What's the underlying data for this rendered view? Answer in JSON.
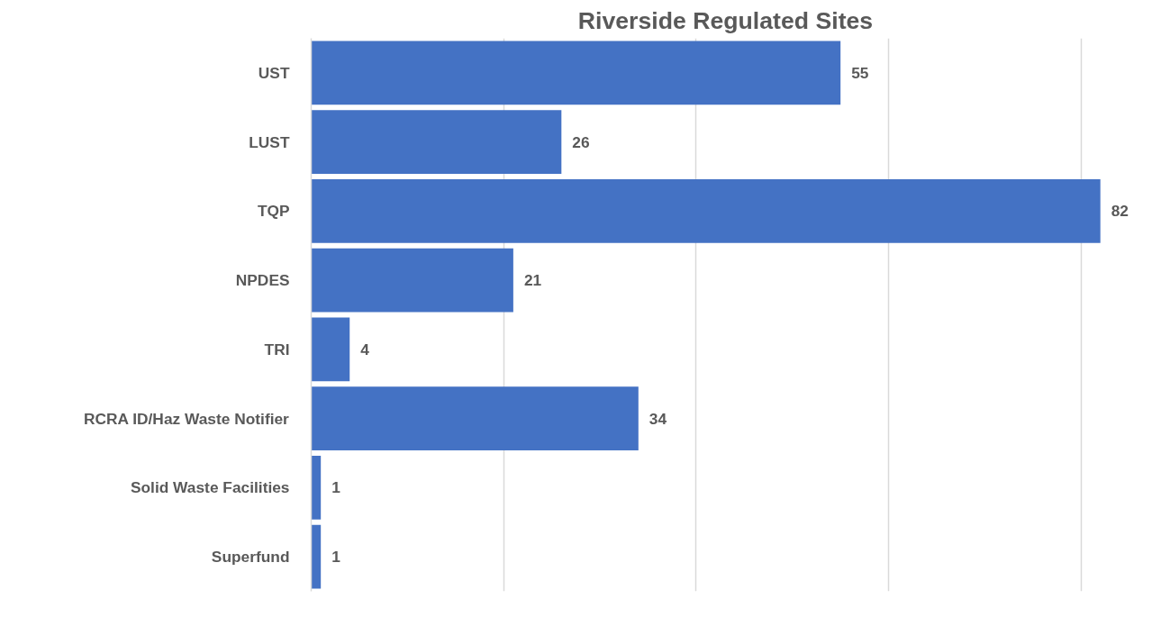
{
  "chart_data": {
    "type": "bar",
    "orientation": "horizontal",
    "title": "Riverside Regulated Sites",
    "categories": [
      "UST",
      "LUST",
      "TQP",
      "NPDES",
      "TRI",
      "RCRA ID/Haz Waste Notifier",
      "Solid Waste Facilities",
      "Superfund"
    ],
    "values": [
      55,
      26,
      82,
      21,
      4,
      34,
      1,
      1
    ],
    "color": "#4472c4",
    "data_labels": true,
    "tick_labels": "y",
    "grid": "x"
  }
}
